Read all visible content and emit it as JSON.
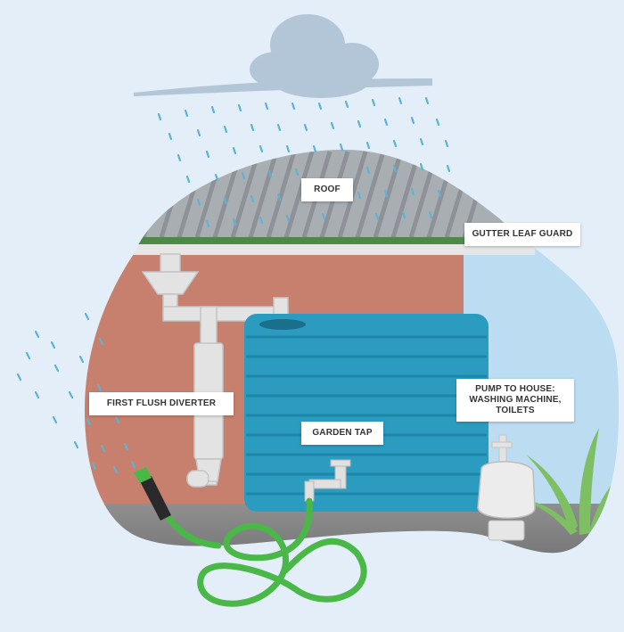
{
  "labels": {
    "roof": "ROOF",
    "gutter_leaf_guard": "GUTTER LEAF GUARD",
    "first_flush_diverter": "FIRST FLUSH DIVERTER",
    "garden_tap": "GARDEN TAP",
    "pump_line1": "PUMP TO HOUSE:",
    "pump_line2": "WASHING MACHINE,",
    "pump_line3": "TOILETS"
  },
  "colors": {
    "background": "#e4eef8",
    "blob": "#cfe3f5",
    "wall": "#c7806d",
    "roof": "#a9aeb2",
    "gutter_guard": "#4d8a4a",
    "tank": "#2b9cc0",
    "hose": "#49b847",
    "pipe": "#e3e3e3",
    "rain": "#5ab4d8",
    "cloud": "#b3c6d8"
  }
}
